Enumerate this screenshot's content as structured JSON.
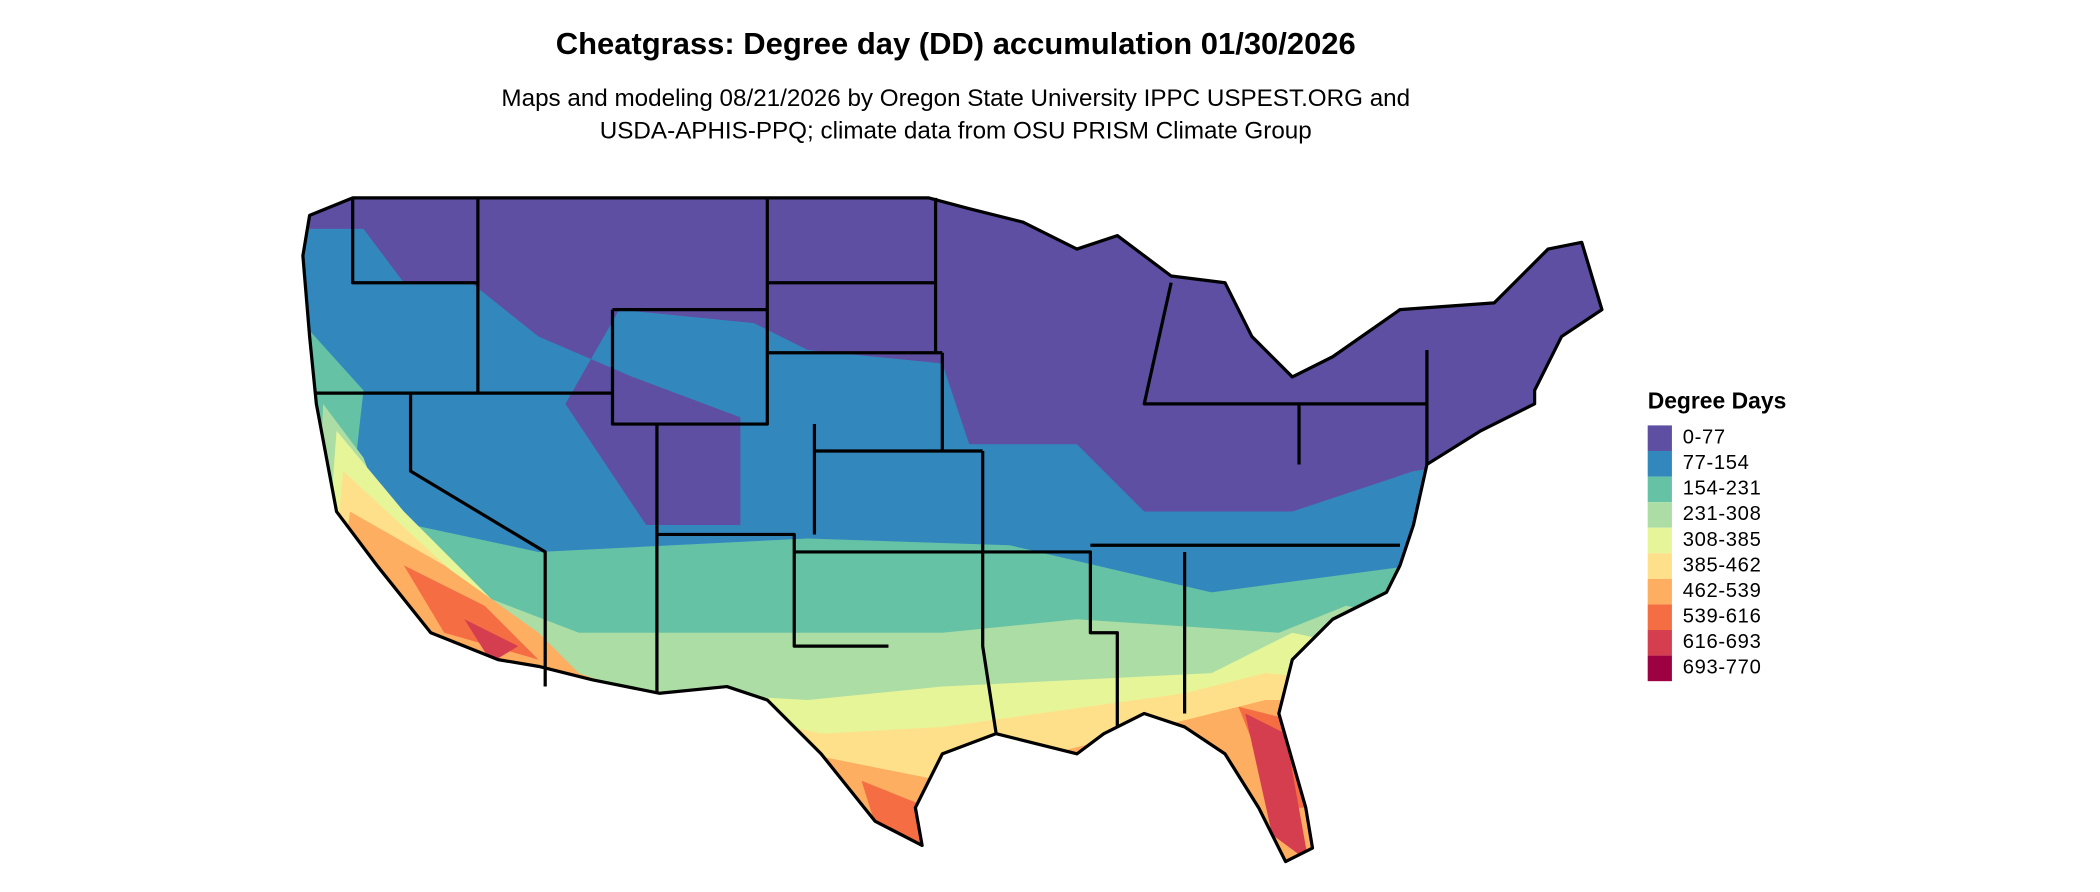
{
  "title": "Cheatgrass: Degree day (DD) accumulation 01/30/2026",
  "subtitle": [
    "Maps and modeling 08/21/2026 by Oregon State University IPPC USPEST.ORG and",
    "USDA-APHIS-PPQ; climate data from OSU PRISM Climate Group"
  ],
  "legend": {
    "title": "Degree Days",
    "items": [
      {
        "label": "0-77",
        "color": "#5E4FA2"
      },
      {
        "label": "77-154",
        "color": "#3288BD"
      },
      {
        "label": "154-231",
        "color": "#66C2A5"
      },
      {
        "label": "231-308",
        "color": "#ABDDA4"
      },
      {
        "label": "308-385",
        "color": "#E6F598"
      },
      {
        "label": "385-462",
        "color": "#FEE08B"
      },
      {
        "label": "462-539",
        "color": "#FDAE61"
      },
      {
        "label": "539-616",
        "color": "#F46D43"
      },
      {
        "label": "616-693",
        "color": "#D53E4F"
      },
      {
        "label": "693-770",
        "color": "#9E0142"
      }
    ]
  }
}
